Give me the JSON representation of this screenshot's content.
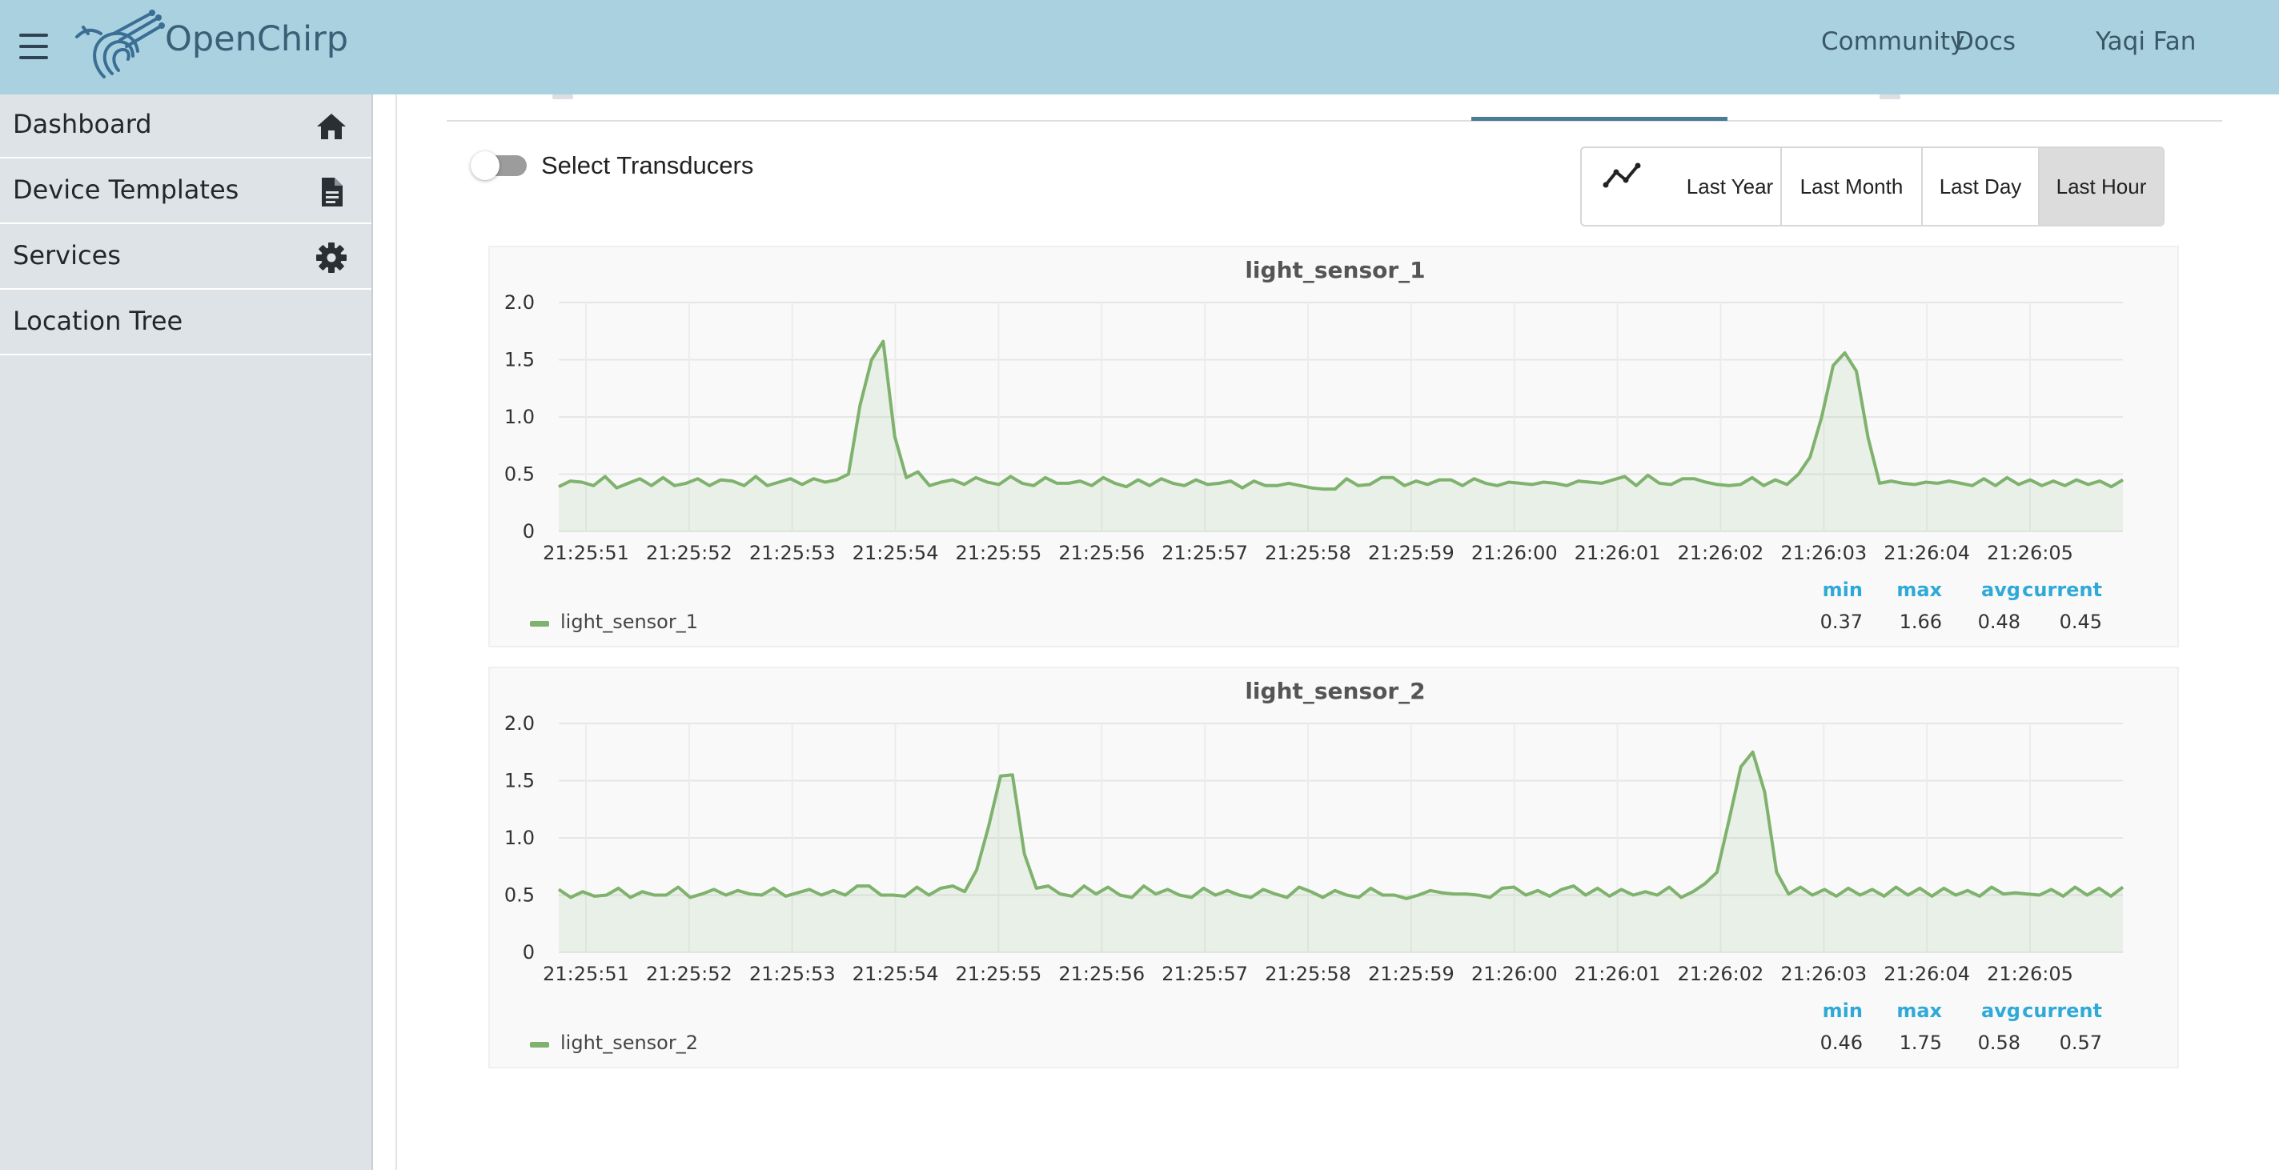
{
  "header": {
    "brand": "OpenChirp",
    "menu_icon": "hamburger-menu-icon",
    "logo_icon": "bird-logo-icon",
    "links": [
      "Community",
      "Docs",
      "Yaqi Fan"
    ]
  },
  "sidebar": {
    "items": [
      {
        "label": "Dashboard",
        "icon": "home-icon"
      },
      {
        "label": "Device Templates",
        "icon": "document-icon"
      },
      {
        "label": "Services",
        "icon": "gear-icon"
      },
      {
        "label": "Location Tree",
        "icon": ""
      }
    ]
  },
  "controls": {
    "toggle_label": "Select Transducers",
    "toggle_on": false,
    "range_icon": "line-chart-icon",
    "ranges": [
      "Last Year",
      "Last Month",
      "Last Day",
      "Last Hour"
    ],
    "active_range": "Last Hour"
  },
  "colors": {
    "topbar": "#a9d1e0",
    "series": "#7eb26d",
    "stat_header": "#2fa9d8",
    "sidebar": "#dde3e6"
  },
  "chart_data": [
    {
      "type": "area",
      "title": "light_sensor_1",
      "xlabel": "",
      "ylabel": "",
      "x_ticks": [
        "21:25:51",
        "21:25:52",
        "21:25:53",
        "21:25:54",
        "21:25:55",
        "21:25:56",
        "21:25:57",
        "21:25:58",
        "21:25:59",
        "21:26:00",
        "21:26:01",
        "21:26:02",
        "21:26:03",
        "21:26:04",
        "21:26:05"
      ],
      "y_ticks": [
        "0",
        "0.5",
        "1.0",
        "1.5",
        "2.0"
      ],
      "ylim": [
        0,
        2.0
      ],
      "grid": true,
      "legend_position": "bottom-left",
      "series": [
        {
          "name": "light_sensor_1",
          "values": [
            0.39,
            0.44,
            0.43,
            0.4,
            0.48,
            0.38,
            0.42,
            0.46,
            0.4,
            0.47,
            0.4,
            0.42,
            0.46,
            0.4,
            0.45,
            0.44,
            0.4,
            0.48,
            0.4,
            0.43,
            0.46,
            0.41,
            0.46,
            0.43,
            0.45,
            0.5,
            1.1,
            1.5,
            1.66,
            0.83,
            0.47,
            0.52,
            0.4,
            0.43,
            0.45,
            0.41,
            0.47,
            0.43,
            0.41,
            0.48,
            0.42,
            0.4,
            0.47,
            0.42,
            0.42,
            0.44,
            0.4,
            0.47,
            0.42,
            0.39,
            0.45,
            0.4,
            0.46,
            0.42,
            0.4,
            0.45,
            0.41,
            0.42,
            0.44,
            0.38,
            0.44,
            0.4,
            0.4,
            0.42,
            0.4,
            0.38,
            0.37,
            0.37,
            0.46,
            0.4,
            0.41,
            0.47,
            0.47,
            0.4,
            0.44,
            0.41,
            0.45,
            0.45,
            0.4,
            0.46,
            0.42,
            0.4,
            0.43,
            0.42,
            0.41,
            0.43,
            0.42,
            0.4,
            0.44,
            0.43,
            0.42,
            0.45,
            0.48,
            0.4,
            0.49,
            0.42,
            0.41,
            0.46,
            0.46,
            0.43,
            0.41,
            0.4,
            0.41,
            0.47,
            0.4,
            0.45,
            0.41,
            0.5,
            0.65,
            1.0,
            1.45,
            1.56,
            1.4,
            0.82,
            0.42,
            0.44,
            0.42,
            0.41,
            0.43,
            0.42,
            0.44,
            0.42,
            0.4,
            0.46,
            0.4,
            0.47,
            0.41,
            0.45,
            0.4,
            0.44,
            0.4,
            0.45,
            0.41,
            0.44,
            0.39,
            0.45
          ],
          "color": "#7eb26d"
        }
      ],
      "legend": {
        "headers": [
          "min",
          "max",
          "avg",
          "current"
        ],
        "values": [
          "0.37",
          "1.66",
          "0.48",
          "0.45"
        ]
      }
    },
    {
      "type": "area",
      "title": "light_sensor_2",
      "xlabel": "",
      "ylabel": "",
      "x_ticks": [
        "21:25:51",
        "21:25:52",
        "21:25:53",
        "21:25:54",
        "21:25:55",
        "21:25:56",
        "21:25:57",
        "21:25:58",
        "21:25:59",
        "21:26:00",
        "21:26:01",
        "21:26:02",
        "21:26:03",
        "21:26:04",
        "21:26:05"
      ],
      "y_ticks": [
        "0",
        "0.5",
        "1.0",
        "1.5",
        "2.0"
      ],
      "ylim": [
        0,
        2.0
      ],
      "grid": true,
      "legend_position": "bottom-left",
      "series": [
        {
          "name": "light_sensor_2",
          "values": [
            0.55,
            0.48,
            0.53,
            0.49,
            0.5,
            0.56,
            0.48,
            0.53,
            0.5,
            0.5,
            0.57,
            0.48,
            0.51,
            0.55,
            0.5,
            0.54,
            0.51,
            0.5,
            0.56,
            0.49,
            0.52,
            0.55,
            0.5,
            0.54,
            0.5,
            0.58,
            0.58,
            0.5,
            0.5,
            0.49,
            0.57,
            0.5,
            0.56,
            0.58,
            0.53,
            0.72,
            1.1,
            1.54,
            1.55,
            0.86,
            0.56,
            0.58,
            0.51,
            0.49,
            0.58,
            0.51,
            0.57,
            0.5,
            0.48,
            0.58,
            0.51,
            0.55,
            0.5,
            0.48,
            0.56,
            0.5,
            0.54,
            0.5,
            0.48,
            0.55,
            0.51,
            0.48,
            0.57,
            0.53,
            0.48,
            0.54,
            0.5,
            0.48,
            0.56,
            0.5,
            0.5,
            0.47,
            0.5,
            0.54,
            0.52,
            0.51,
            0.51,
            0.5,
            0.48,
            0.56,
            0.57,
            0.5,
            0.54,
            0.49,
            0.55,
            0.58,
            0.5,
            0.56,
            0.49,
            0.55,
            0.5,
            0.53,
            0.5,
            0.57,
            0.48,
            0.53,
            0.6,
            0.7,
            1.15,
            1.62,
            1.75,
            1.4,
            0.7,
            0.51,
            0.57,
            0.5,
            0.55,
            0.49,
            0.56,
            0.5,
            0.55,
            0.49,
            0.57,
            0.5,
            0.56,
            0.49,
            0.56,
            0.5,
            0.54,
            0.49,
            0.57,
            0.51,
            0.52,
            0.51,
            0.5,
            0.55,
            0.49,
            0.57,
            0.5,
            0.56,
            0.49,
            0.57
          ],
          "color": "#7eb26d"
        }
      ],
      "legend": {
        "headers": [
          "min",
          "max",
          "avg",
          "current"
        ],
        "values": [
          "0.46",
          "1.75",
          "0.58",
          "0.57"
        ]
      }
    }
  ]
}
